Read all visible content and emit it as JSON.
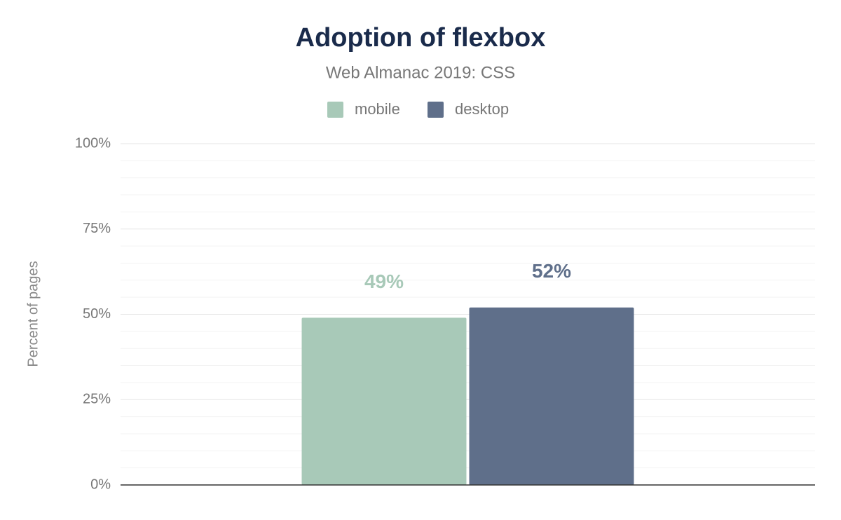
{
  "chart_data": {
    "type": "bar",
    "title": "Adoption of flexbox",
    "subtitle": "Web Almanac 2019: CSS",
    "y_label": "Percent of pages",
    "categories": [
      null
    ],
    "series": [
      {
        "name": "mobile",
        "color": "#a8c9b8",
        "values": [
          49
        ],
        "value_labels": [
          "49%"
        ]
      },
      {
        "name": "desktop",
        "color": "#5f6f8a",
        "values": [
          52
        ],
        "value_labels": [
          "52%"
        ]
      }
    ],
    "ylim": [
      0,
      100
    ],
    "yticks": [
      {
        "value": 0,
        "label": "0%"
      },
      {
        "value": 25,
        "label": "25%"
      },
      {
        "value": 50,
        "label": "50%"
      },
      {
        "value": 75,
        "label": "75%"
      },
      {
        "value": 100,
        "label": "100%"
      }
    ],
    "minor_yticks": [
      5,
      10,
      15,
      20,
      30,
      35,
      40,
      45,
      55,
      60,
      65,
      70,
      80,
      85,
      90,
      95
    ],
    "grid": true,
    "legend": "top"
  }
}
